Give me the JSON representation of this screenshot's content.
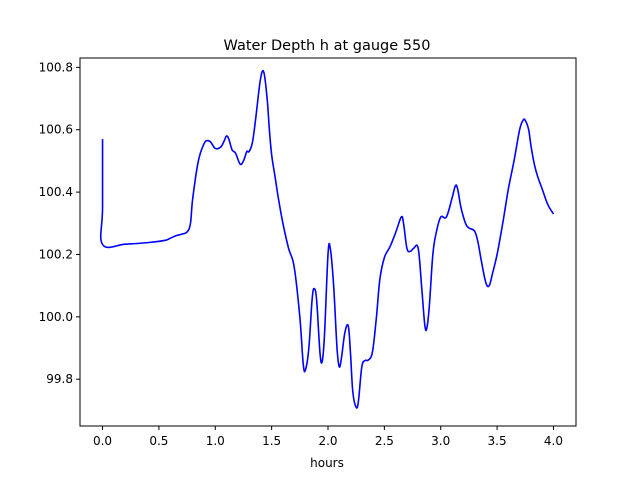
{
  "chart_data": {
    "type": "line",
    "title": "Water Depth h at gauge 550",
    "xlabel": "hours",
    "ylabel": "",
    "xlim": [
      -0.2,
      4.2
    ],
    "ylim": [
      99.65,
      100.83
    ],
    "grid": false,
    "x_ticks": [
      0.0,
      0.5,
      1.0,
      1.5,
      2.0,
      2.5,
      3.0,
      3.5,
      4.0
    ],
    "x_tick_labels": [
      "0.0",
      "0.5",
      "1.0",
      "1.5",
      "2.0",
      "2.5",
      "3.0",
      "3.5",
      "4.0"
    ],
    "y_ticks": [
      99.8,
      100.0,
      100.2,
      100.4,
      100.6,
      100.8
    ],
    "y_tick_labels": [
      "99.8",
      "100.0",
      "100.2",
      "100.4",
      "100.6",
      "100.8"
    ],
    "series": [
      {
        "color": "#0000ff",
        "x": [
          0.0,
          0.0,
          0.0,
          0.2,
          0.4,
          0.55,
          0.6,
          0.65,
          0.7,
          0.75,
          0.78,
          0.8,
          0.85,
          0.9,
          0.93,
          0.96,
          1.0,
          1.05,
          1.08,
          1.1,
          1.12,
          1.15,
          1.18,
          1.22,
          1.25,
          1.28,
          1.3,
          1.33,
          1.36,
          1.4,
          1.43,
          1.46,
          1.48,
          1.5,
          1.53,
          1.56,
          1.6,
          1.65,
          1.7,
          1.75,
          1.78,
          1.8,
          1.83,
          1.86,
          1.88,
          1.9,
          1.93,
          1.95,
          1.97,
          2.0,
          2.02,
          2.05,
          2.08,
          2.1,
          2.12,
          2.15,
          2.18,
          2.2,
          2.22,
          2.25,
          2.27,
          2.3,
          2.33,
          2.35,
          2.38,
          2.4,
          2.43,
          2.46,
          2.5,
          2.55,
          2.6,
          2.65,
          2.67,
          2.7,
          2.73,
          2.76,
          2.8,
          2.83,
          2.86,
          2.88,
          2.9,
          2.93,
          2.96,
          3.0,
          3.05,
          3.1,
          3.13,
          3.15,
          3.18,
          3.22,
          3.25,
          3.3,
          3.33,
          3.36,
          3.4,
          3.43,
          3.46,
          3.5,
          3.55,
          3.6,
          3.65,
          3.7,
          3.73,
          3.75,
          3.78,
          3.8,
          3.83,
          3.86,
          3.9,
          3.95,
          4.0
        ],
        "y": [
          100.57,
          100.35,
          100.232,
          100.233,
          100.238,
          100.245,
          100.252,
          100.26,
          100.265,
          100.272,
          100.3,
          100.38,
          100.5,
          100.555,
          100.565,
          100.56,
          100.54,
          100.545,
          100.565,
          100.58,
          100.57,
          100.535,
          100.525,
          100.49,
          100.5,
          100.53,
          100.53,
          100.56,
          100.64,
          100.76,
          100.785,
          100.7,
          100.6,
          100.52,
          100.45,
          100.38,
          100.3,
          100.22,
          100.16,
          100.0,
          99.85,
          99.83,
          99.9,
          100.06,
          100.09,
          100.05,
          99.88,
          99.86,
          99.95,
          100.2,
          100.22,
          100.1,
          99.9,
          99.84,
          99.87,
          99.95,
          99.97,
          99.88,
          99.76,
          99.71,
          99.73,
          99.84,
          99.86,
          99.86,
          99.87,
          99.9,
          100.0,
          100.12,
          100.19,
          100.225,
          100.27,
          100.32,
          100.3,
          100.22,
          100.21,
          100.22,
          100.22,
          100.1,
          99.97,
          99.97,
          100.04,
          100.2,
          100.27,
          100.32,
          100.32,
          100.38,
          100.42,
          100.41,
          100.35,
          100.3,
          100.285,
          100.275,
          100.24,
          100.18,
          100.11,
          100.1,
          100.14,
          100.2,
          100.3,
          100.41,
          100.5,
          100.6,
          100.63,
          100.63,
          100.6,
          100.55,
          100.49,
          100.45,
          100.41,
          100.36,
          100.33
        ]
      }
    ]
  }
}
